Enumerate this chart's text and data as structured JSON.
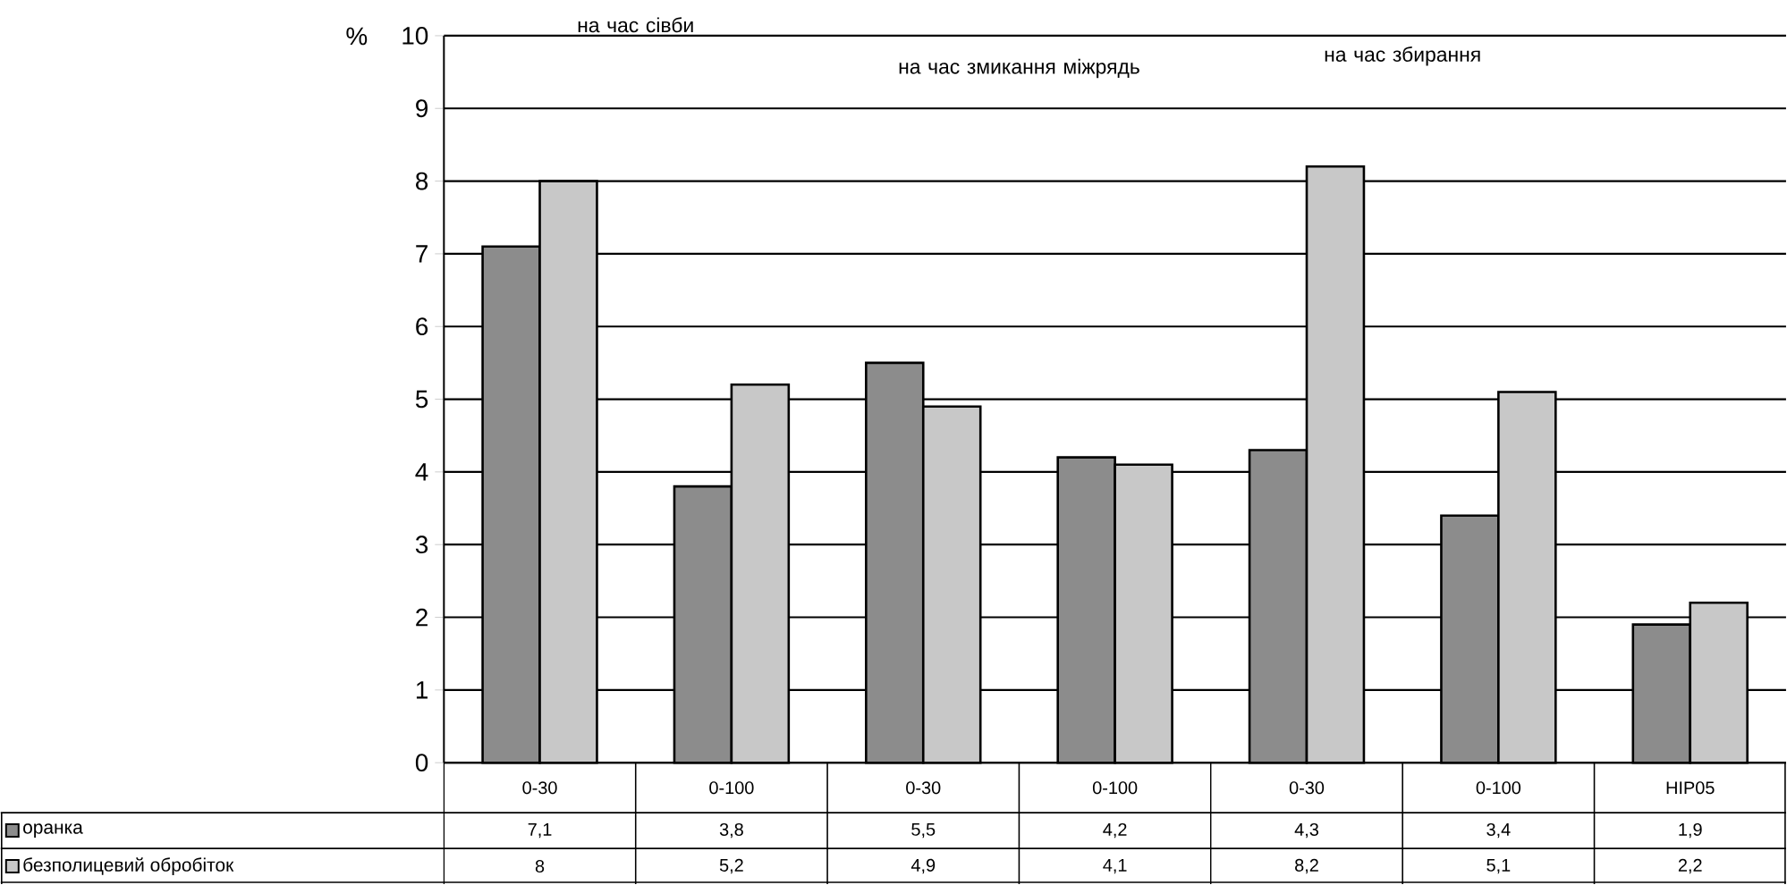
{
  "chart_data": {
    "type": "bar",
    "ylabel": "%",
    "categories": [
      "0-30",
      "0-100",
      "0-30",
      "0-100",
      "0-30",
      "0-100",
      "НІР05"
    ],
    "series": [
      {
        "name": "оранка",
        "color": "#8c8c8c",
        "values": [
          7.1,
          3.8,
          5.5,
          4.2,
          4.3,
          3.4,
          1.9
        ],
        "value_labels": [
          "7,1",
          "3,8",
          "5,5",
          "4,2",
          "4,3",
          "3,4",
          "1,9"
        ]
      },
      {
        "name": "безполицевий обробіток",
        "color": "#c8c8c8",
        "values": [
          8,
          5.2,
          4.9,
          4.1,
          8.2,
          5.1,
          2.2
        ],
        "value_labels": [
          "8",
          "5,2",
          "4,9",
          "4,1",
          "8,2",
          "5,1",
          "2,2"
        ]
      }
    ],
    "ylim": [
      0,
      10
    ],
    "yticks": [
      0,
      1,
      2,
      3,
      4,
      5,
      6,
      7,
      8,
      9,
      10
    ],
    "grid": "y",
    "legend": "bottom left",
    "annotations": [
      "на час сівби",
      "на час змикання міжрядь",
      "на час збирання"
    ]
  }
}
